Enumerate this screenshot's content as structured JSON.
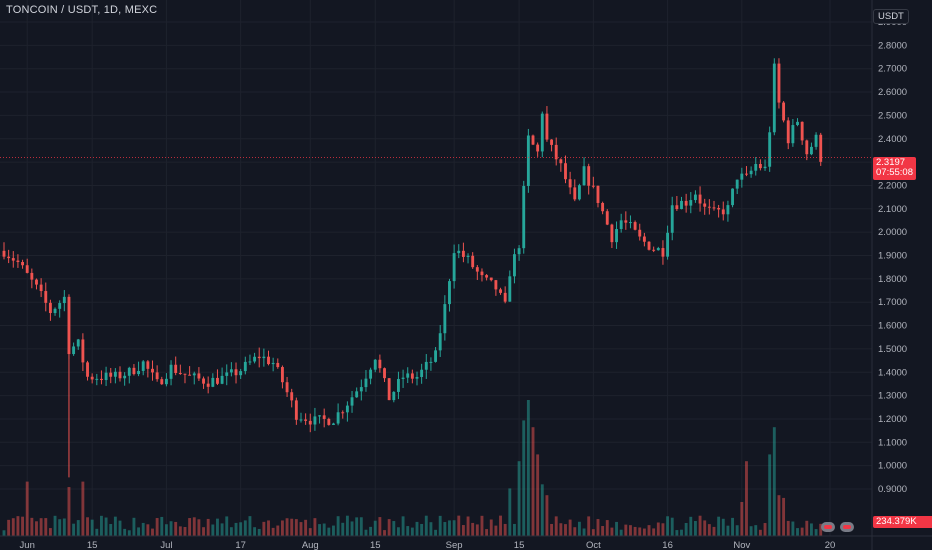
{
  "pair_title": "TONCOIN / USDT, 1D, MEXC",
  "quote_currency": "USDT",
  "current_price_label": "2.3197",
  "countdown": "07:55:08",
  "volume_label": "234.379K",
  "colors": {
    "up": "#26a69a",
    "down": "#ef5350",
    "background": "#131722",
    "price_line": "#f23645"
  },
  "icons": [
    "earnings-flag-icon",
    "earnings-flag-icon"
  ],
  "chart_data": {
    "type": "candlestick",
    "y_ticks": [
      "2.9000",
      "2.8000",
      "2.7000",
      "2.6000",
      "2.5000",
      "2.4000",
      "2.3000",
      "2.2000",
      "2.1000",
      "2.0000",
      "1.9000",
      "1.8000",
      "1.7000",
      "1.6000",
      "1.5000",
      "1.4000",
      "1.3000",
      "1.2000",
      "1.1000",
      "1.0000",
      "0.9000"
    ],
    "ylim": [
      0.9,
      2.9
    ],
    "x_ticks": [
      {
        "label": "Jun",
        "idx": 5
      },
      {
        "label": "15",
        "idx": 19
      },
      {
        "label": "Jul",
        "idx": 35
      },
      {
        "label": "17",
        "idx": 51
      },
      {
        "label": "Aug",
        "idx": 66
      },
      {
        "label": "15",
        "idx": 80
      },
      {
        "label": "Sep",
        "idx": 97
      },
      {
        "label": "15",
        "idx": 111
      },
      {
        "label": "Oct",
        "idx": 127
      },
      {
        "label": "16",
        "idx": 143
      },
      {
        "label": "Nov",
        "idx": 159
      },
      {
        "label": "20",
        "idx": 178
      }
    ],
    "close_path": [
      [
        0,
        1.92
      ],
      [
        3,
        1.87
      ],
      [
        7,
        1.76
      ],
      [
        10,
        1.66
      ],
      [
        13,
        1.72
      ],
      [
        14,
        1.5
      ],
      [
        16,
        1.52
      ],
      [
        18,
        1.38
      ],
      [
        24,
        1.38
      ],
      [
        27,
        1.4
      ],
      [
        30,
        1.44
      ],
      [
        33,
        1.35
      ],
      [
        36,
        1.42
      ],
      [
        40,
        1.38
      ],
      [
        44,
        1.36
      ],
      [
        48,
        1.38
      ],
      [
        51,
        1.41
      ],
      [
        55,
        1.47
      ],
      [
        58,
        1.44
      ],
      [
        60,
        1.36
      ],
      [
        63,
        1.22
      ],
      [
        67,
        1.19
      ],
      [
        71,
        1.2
      ],
      [
        74,
        1.27
      ],
      [
        77,
        1.35
      ],
      [
        80,
        1.47
      ],
      [
        83,
        1.29
      ],
      [
        86,
        1.38
      ],
      [
        89,
        1.38
      ],
      [
        93,
        1.47
      ],
      [
        95,
        1.68
      ],
      [
        97,
        1.93
      ],
      [
        100,
        1.88
      ],
      [
        103,
        1.8
      ],
      [
        106,
        1.76
      ],
      [
        108,
        1.68
      ],
      [
        109,
        1.83
      ],
      [
        111,
        1.95
      ],
      [
        113,
        2.4
      ],
      [
        115,
        2.34
      ],
      [
        116,
        2.52
      ],
      [
        117,
        2.39
      ],
      [
        120,
        2.28
      ],
      [
        123,
        2.12
      ],
      [
        125,
        2.26
      ],
      [
        128,
        2.14
      ],
      [
        131,
        1.98
      ],
      [
        133,
        2.05
      ],
      [
        135,
        2.02
      ],
      [
        137,
        1.97
      ],
      [
        140,
        1.93
      ],
      [
        142,
        1.92
      ],
      [
        144,
        2.12
      ],
      [
        147,
        2.13
      ],
      [
        149,
        2.17
      ],
      [
        151,
        2.1
      ],
      [
        153,
        2.08
      ],
      [
        156,
        2.1
      ],
      [
        158,
        2.24
      ],
      [
        160,
        2.23
      ],
      [
        162,
        2.29
      ],
      [
        164,
        2.27
      ],
      [
        165,
        2.44
      ],
      [
        166,
        2.7
      ],
      [
        167,
        2.55
      ],
      [
        169,
        2.4
      ],
      [
        171,
        2.48
      ],
      [
        173,
        2.34
      ],
      [
        175,
        2.4
      ],
      [
        176,
        2.32
      ]
    ],
    "volume_spikes": [
      [
        5,
        0.4
      ],
      [
        14,
        0.36
      ],
      [
        17,
        0.4
      ],
      [
        109,
        0.35
      ],
      [
        111,
        0.55
      ],
      [
        112,
        0.85
      ],
      [
        113,
        1.0
      ],
      [
        114,
        0.8
      ],
      [
        115,
        0.6
      ],
      [
        116,
        0.38
      ],
      [
        117,
        0.3
      ],
      [
        159,
        0.25
      ],
      [
        160,
        0.55
      ],
      [
        165,
        0.6
      ],
      [
        166,
        0.8
      ],
      [
        167,
        0.3
      ],
      [
        168,
        0.28
      ]
    ],
    "volume_base": 0.12,
    "volume_max_value": "1.35M"
  }
}
